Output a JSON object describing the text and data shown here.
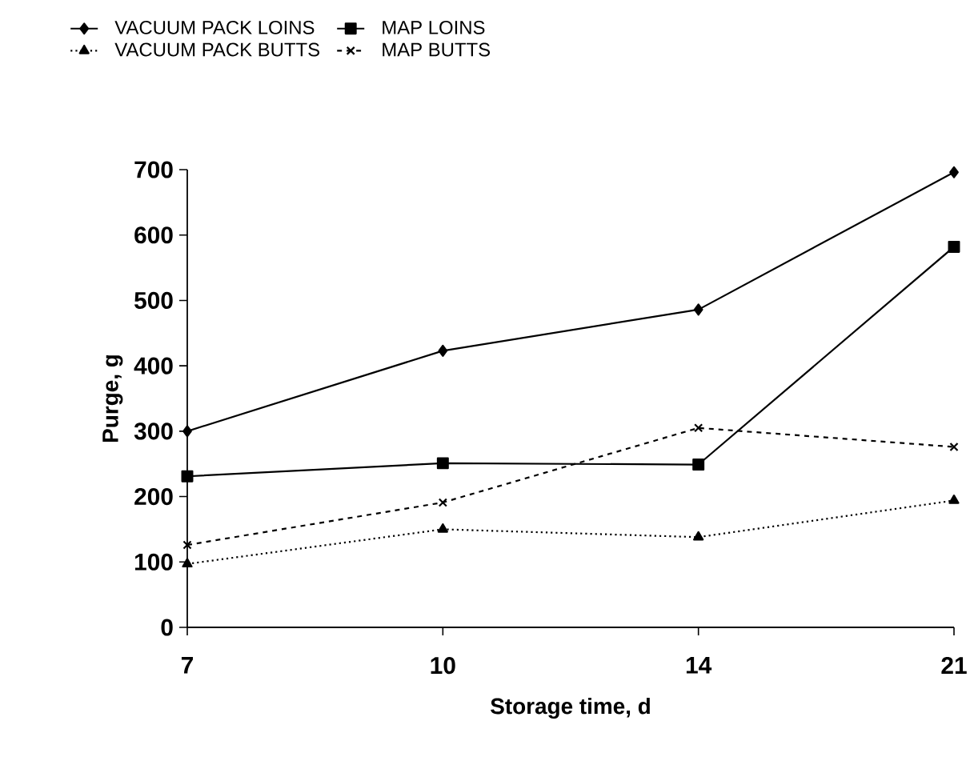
{
  "chart_data": {
    "type": "line",
    "xlabel": "Storage time, d",
    "ylabel": "Purge, g",
    "categories": [
      "7",
      "10",
      "14",
      "21"
    ],
    "series": [
      {
        "name": "VACUUM PACK LOINS",
        "color": "#000000",
        "marker": "diamond",
        "line_style": "solid",
        "values": [
          300,
          423,
          486,
          696
        ]
      },
      {
        "name": "MAP LOINS",
        "color": "#000000",
        "marker": "square",
        "line_style": "solid",
        "values": [
          231,
          251,
          249,
          582
        ]
      },
      {
        "name": "VACUUM PACK BUTTS",
        "color": "#000000",
        "marker": "triangle",
        "line_style": "dotted",
        "values": [
          97,
          150,
          138,
          194
        ]
      },
      {
        "name": "MAP BUTTS",
        "color": "#000000",
        "marker": "cross",
        "line_style": "dashed",
        "values": [
          126,
          191,
          305,
          276
        ]
      }
    ],
    "ylim": [
      0,
      700
    ],
    "yticks": [
      0,
      100,
      200,
      300,
      400,
      500,
      600,
      700
    ],
    "grid": false,
    "legend": "top"
  }
}
